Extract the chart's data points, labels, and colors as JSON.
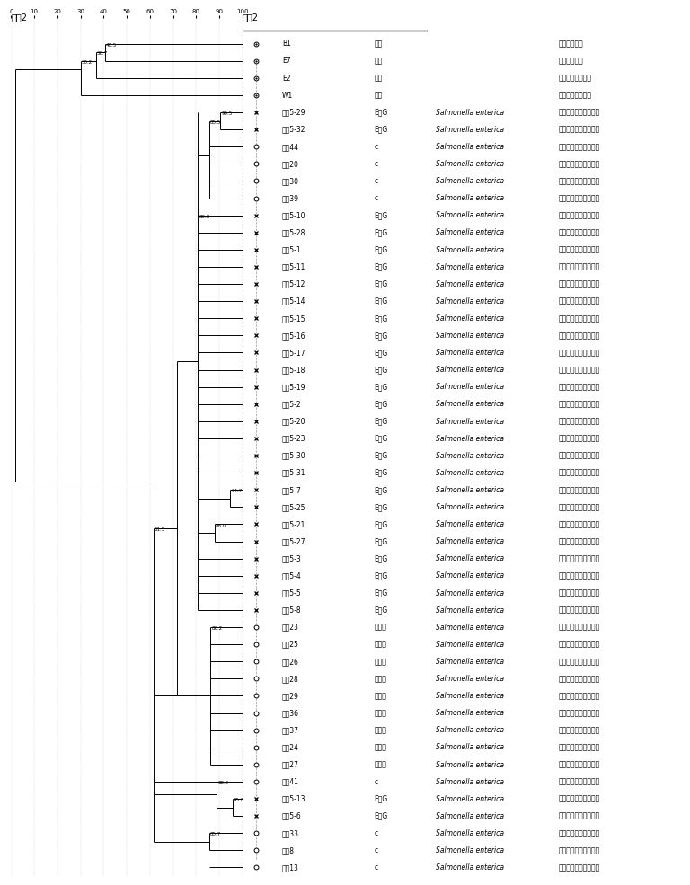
{
  "title_left": "引物2",
  "title_right": "引物2",
  "rows": [
    {
      "marker": "circle_dot",
      "sample": "B1",
      "reaction": "阴性",
      "species_lat": "",
      "species_cn": "肠杆菌属菌种"
    },
    {
      "marker": "circle_dot",
      "sample": "E7",
      "reaction": "阴性",
      "species_lat": "",
      "species_cn": "肠杆菌属菌种"
    },
    {
      "marker": "circle_dot",
      "sample": "E2",
      "reaction": "阴性",
      "species_lat": "",
      "species_cn": "板崎肠杆菌属菌种"
    },
    {
      "marker": "circle_dot",
      "sample": "W1",
      "reaction": "阴性",
      "species_lat": "",
      "species_cn": "柠檬酸杆菌属菌种"
    },
    {
      "marker": "cross",
      "sample": "环境5-29",
      "reaction": "E或G",
      "species_lat": "Salmonella enterica",
      "species_cn": "肠道沙门氏菌肠道亚种"
    },
    {
      "marker": "cross",
      "sample": "环境5-32",
      "reaction": "E或G",
      "species_lat": "Salmonella enterica",
      "species_cn": "肠道沙门氏菌肠道亚种"
    },
    {
      "marker": "circle",
      "sample": "鸡肉44",
      "reaction": "c",
      "species_lat": "Salmonella enterica",
      "species_cn": "肠道沙门氏菌肠道亚种"
    },
    {
      "marker": "circle",
      "sample": "鸡肉20",
      "reaction": "c",
      "species_lat": "Salmonella enterica",
      "species_cn": "肠道沙门氏菌肠道亚种"
    },
    {
      "marker": "circle",
      "sample": "鸡肉30",
      "reaction": "c",
      "species_lat": "Salmonella enterica",
      "species_cn": "肠道沙门氏菌肠道亚种"
    },
    {
      "marker": "circle",
      "sample": "鸡肉39",
      "reaction": "c",
      "species_lat": "Salmonella enterica",
      "species_cn": "肠道沙门氏菌肠道亚种"
    },
    {
      "marker": "cross",
      "sample": "环境5-10",
      "reaction": "E或G",
      "species_lat": "Salmonella enterica",
      "species_cn": "肠道沙门氏菌肠道亚种"
    },
    {
      "marker": "cross",
      "sample": "环境5-28",
      "reaction": "E或G",
      "species_lat": "Salmonella enterica",
      "species_cn": "肠道沙门氏菌肠道亚种"
    },
    {
      "marker": "cross",
      "sample": "环境5-1",
      "reaction": "E或G",
      "species_lat": "Salmonella enterica",
      "species_cn": "肠道沙门氏菌肠道亚种"
    },
    {
      "marker": "cross",
      "sample": "环境5-11",
      "reaction": "E或G",
      "species_lat": "Salmonella enterica",
      "species_cn": "肠道沙门氏菌肠道亚种"
    },
    {
      "marker": "cross",
      "sample": "环境5-12",
      "reaction": "E或G",
      "species_lat": "Salmonella enterica",
      "species_cn": "肠道沙门氏菌肠道亚种"
    },
    {
      "marker": "cross",
      "sample": "环境5-14",
      "reaction": "E或G",
      "species_lat": "Salmonella enterica",
      "species_cn": "肠道沙门氏菌肠道亚种"
    },
    {
      "marker": "cross",
      "sample": "环境5-15",
      "reaction": "E或G",
      "species_lat": "Salmonella enterica",
      "species_cn": "肠道沙门氏菌肠道亚种"
    },
    {
      "marker": "cross",
      "sample": "环境5-16",
      "reaction": "E或G",
      "species_lat": "Salmonella enterica",
      "species_cn": "肠道沙门氏菌肠道亚种"
    },
    {
      "marker": "cross",
      "sample": "环境5-17",
      "reaction": "E或G",
      "species_lat": "Salmonella enterica",
      "species_cn": "肠道沙门氏菌肠道亚种"
    },
    {
      "marker": "cross",
      "sample": "环境5-18",
      "reaction": "E或G",
      "species_lat": "Salmonella enterica",
      "species_cn": "肠道沙门氏菌肠道亚种"
    },
    {
      "marker": "cross",
      "sample": "环境5-19",
      "reaction": "E或G",
      "species_lat": "Salmonella enterica",
      "species_cn": "肠道沙门氏菌肠道亚种"
    },
    {
      "marker": "cross",
      "sample": "环境5-2",
      "reaction": "E或G",
      "species_lat": "Salmonella enterica",
      "species_cn": "肠道沙门氏菌肠道亚种"
    },
    {
      "marker": "cross",
      "sample": "环境5-20",
      "reaction": "E或G",
      "species_lat": "Salmonella enterica",
      "species_cn": "肠道沙门氏菌肠道亚种"
    },
    {
      "marker": "cross",
      "sample": "环境5-23",
      "reaction": "E或G",
      "species_lat": "Salmonella enterica",
      "species_cn": "肠道沙门氏菌肠道亚种"
    },
    {
      "marker": "cross",
      "sample": "环境5-30",
      "reaction": "E或G",
      "species_lat": "Salmonella enterica",
      "species_cn": "肠道沙门氏菌肠道亚种"
    },
    {
      "marker": "cross",
      "sample": "环境5-31",
      "reaction": "E或G",
      "species_lat": "Salmonella enterica",
      "species_cn": "肠道沙门氏菌肠道亚种"
    },
    {
      "marker": "cross",
      "sample": "环境5-7",
      "reaction": "E或G",
      "species_lat": "Salmonella enterica",
      "species_cn": "肠道沙门氏菌肠道亚种"
    },
    {
      "marker": "cross",
      "sample": "环境5-25",
      "reaction": "E或G",
      "species_lat": "Salmonella enterica",
      "species_cn": "肠道沙门氏菌肠道亚种"
    },
    {
      "marker": "cross",
      "sample": "环境5-21",
      "reaction": "E或G",
      "species_lat": "Salmonella enterica",
      "species_cn": "肠道沙门氏菌肠道亚种"
    },
    {
      "marker": "cross",
      "sample": "环境5-27",
      "reaction": "E或G",
      "species_lat": "Salmonella enterica",
      "species_cn": "肠道沙门氏菌肠道亚种"
    },
    {
      "marker": "cross",
      "sample": "环境5-3",
      "reaction": "E或G",
      "species_lat": "Salmonella enterica",
      "species_cn": "肠道沙门氏菌肠道亚种"
    },
    {
      "marker": "cross",
      "sample": "环境5-4",
      "reaction": "E或G",
      "species_lat": "Salmonella enterica",
      "species_cn": "肠道沙门氏菌肠道亚种"
    },
    {
      "marker": "cross",
      "sample": "环境5-5",
      "reaction": "E或G",
      "species_lat": "Salmonella enterica",
      "species_cn": "肠道沙门氏菌肠道亚种"
    },
    {
      "marker": "cross",
      "sample": "环境5-8",
      "reaction": "E或G",
      "species_lat": "Salmonella enterica",
      "species_cn": "肠道沙门氏菌肠道亚种"
    },
    {
      "marker": "circle",
      "sample": "鸡肉23",
      "reaction": "无反应",
      "species_lat": "Salmonella enterica",
      "species_cn": "肠道沙门氏菌肠道亚种"
    },
    {
      "marker": "circle",
      "sample": "鸡肉25",
      "reaction": "无反应",
      "species_lat": "Salmonella enterica",
      "species_cn": "肠道沙门氏菌肠道亚种"
    },
    {
      "marker": "circle",
      "sample": "鸡肉26",
      "reaction": "无反应",
      "species_lat": "Salmonella enterica",
      "species_cn": "肠道沙门氏菌肠道亚种"
    },
    {
      "marker": "circle",
      "sample": "鸡肉28",
      "reaction": "无反应",
      "species_lat": "Salmonella enterica",
      "species_cn": "肠道沙门氏菌肠道亚种"
    },
    {
      "marker": "circle",
      "sample": "鸡肉29",
      "reaction": "无反应",
      "species_lat": "Salmonella enterica",
      "species_cn": "肠道沙门氏菌肠道亚种"
    },
    {
      "marker": "circle",
      "sample": "鸡肉36",
      "reaction": "无反应",
      "species_lat": "Salmonella enterica",
      "species_cn": "肠道沙门氏菌肠道亚种"
    },
    {
      "marker": "circle",
      "sample": "鸡肉37",
      "reaction": "无反应",
      "species_lat": "Salmonella enterica",
      "species_cn": "肠道沙门氏菌肠道亚种"
    },
    {
      "marker": "circle",
      "sample": "鸡肉24",
      "reaction": "无反应",
      "species_lat": "Salmonella enterica",
      "species_cn": "肠道沙门氏菌肠道亚种"
    },
    {
      "marker": "circle",
      "sample": "鸡肉27",
      "reaction": "无反应",
      "species_lat": "Salmonella enterica",
      "species_cn": "肠道沙门氏菌肠道亚种"
    },
    {
      "marker": "circle",
      "sample": "鸡肉41",
      "reaction": "c",
      "species_lat": "Salmonella enterica",
      "species_cn": "肠道沙门氏菌肠道亚种"
    },
    {
      "marker": "cross",
      "sample": "环境5-13",
      "reaction": "E或G",
      "species_lat": "Salmonella enterica",
      "species_cn": "肠道沙门氏菌肠道亚种"
    },
    {
      "marker": "cross",
      "sample": "环境5-6",
      "reaction": "E或G",
      "species_lat": "Salmonella enterica",
      "species_cn": "肠道沙门氏菌肠道亚种"
    },
    {
      "marker": "circle",
      "sample": "鸡肉33",
      "reaction": "c",
      "species_lat": "Salmonella enterica",
      "species_cn": "肠道沙门氏菌肠道亚种"
    },
    {
      "marker": "circle",
      "sample": "鸡肉8",
      "reaction": "c",
      "species_lat": "Salmonella enterica",
      "species_cn": "肠道沙门氏菌肠道亚种"
    },
    {
      "marker": "circle",
      "sample": "鸡肉13",
      "reaction": "c",
      "species_lat": "Salmonella enterica",
      "species_cn": "肠道沙门氏菌肠道亚种"
    }
  ],
  "bg_color": "#ffffff",
  "line_color": "#000000",
  "font_size_title": 7,
  "font_size_label": 5.5,
  "font_size_scale": 5
}
